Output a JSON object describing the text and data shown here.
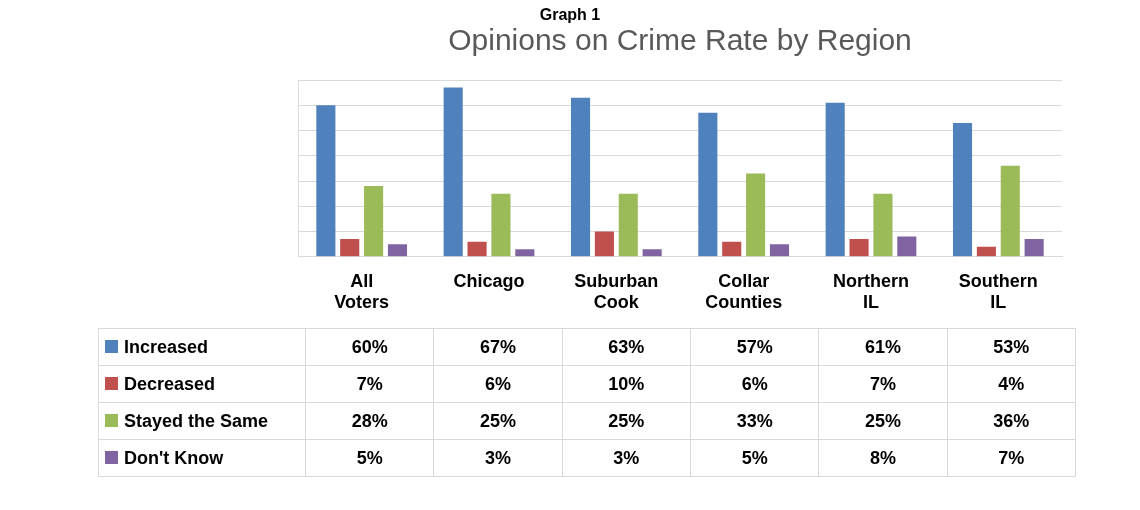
{
  "chart_data": {
    "type": "bar",
    "title": "Opinions on Crime Rate by Region",
    "annotations": [
      "Graph 1"
    ],
    "categories": [
      "All Voters",
      "Chicago",
      "Suburban Cook",
      "Collar Counties",
      "Northern IL",
      "Southern IL"
    ],
    "series": [
      {
        "name": "Increased",
        "color": "#4f81bd",
        "values": [
          60,
          67,
          63,
          57,
          61,
          53
        ],
        "value_labels": [
          "60%",
          "67%",
          "63%",
          "57%",
          "61%",
          "53%"
        ]
      },
      {
        "name": "Decreased",
        "color": "#c0504d",
        "values": [
          7,
          6,
          10,
          6,
          7,
          4
        ],
        "value_labels": [
          "7%",
          "6%",
          "10%",
          "6%",
          "7%",
          "4%"
        ]
      },
      {
        "name": "Stayed the Same",
        "color": "#9bbb59",
        "values": [
          28,
          25,
          25,
          33,
          25,
          36
        ],
        "value_labels": [
          "28%",
          "25%",
          "25%",
          "33%",
          "25%",
          "36%"
        ]
      },
      {
        "name": "Don't Know",
        "color": "#8064a2",
        "values": [
          5,
          3,
          3,
          5,
          8,
          7
        ],
        "value_labels": [
          "5%",
          "3%",
          "3%",
          "5%",
          "8%",
          "7%"
        ]
      }
    ],
    "grid": "y",
    "legend": "bottom",
    "tick_labels": "x"
  }
}
